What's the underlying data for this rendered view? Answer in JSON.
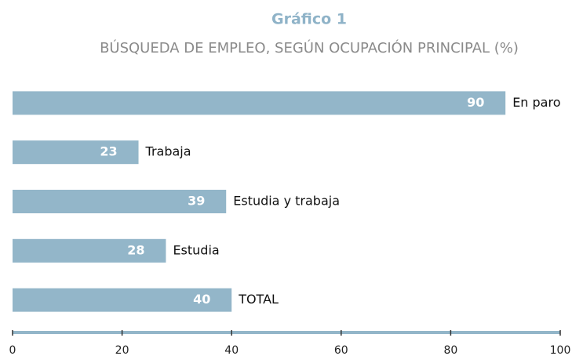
{
  "chart_data": {
    "type": "bar",
    "orientation": "horizontal",
    "title": "Gráfico 1",
    "subtitle": "BÚSQUEDA DE EMPLEO, SEGÚN OCUPACIÓN PRINCIPAL (%)",
    "categories": [
      "En paro",
      "Trabaja",
      "Estudia y trabaja",
      "Estudia",
      "TOTAL"
    ],
    "values": [
      90,
      23,
      39,
      28,
      40
    ],
    "color": "#93b6c9",
    "xlim": [
      0,
      100
    ],
    "xticks": [
      0,
      20,
      40,
      60,
      80,
      100
    ]
  }
}
